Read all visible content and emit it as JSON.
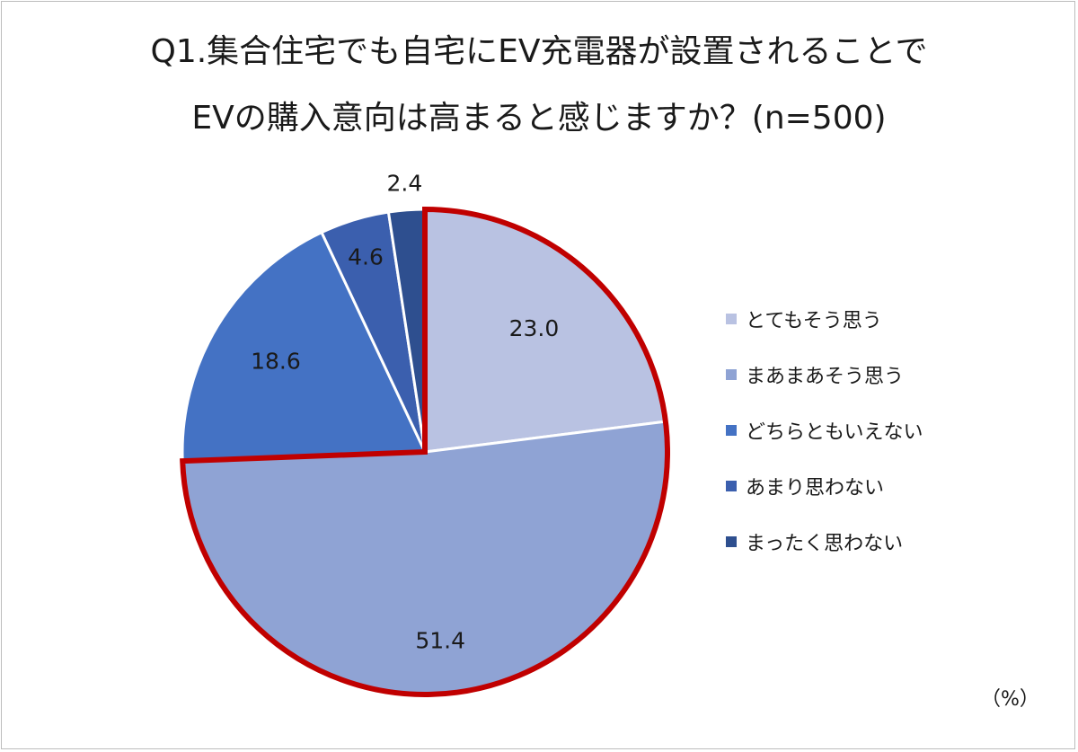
{
  "chart_data": {
    "type": "pie",
    "title_lines": [
      "Q1.集合住宅でも自宅にEV充電器が設置されることで",
      "EVの購入意向は高まると感じますか？(n=500)"
    ],
    "unit": "（%）",
    "categories": [
      "とてもそう思う",
      "まあまあそう思う",
      "どちらともいえない",
      "あまり思わない",
      "まったく思わない"
    ],
    "values": [
      23.0,
      51.4,
      18.6,
      4.6,
      2.4
    ],
    "value_labels": [
      "23.0",
      "51.4",
      "18.6",
      "4.6",
      "2.4"
    ],
    "colors": [
      "#b9c2e2",
      "#8fa3d4",
      "#4472c4",
      "#3b5fae",
      "#2e4f8f"
    ],
    "highlight": {
      "slices": [
        "とてもそう思う",
        "まあまあそう思う"
      ],
      "color": "#c00000"
    },
    "legend_position": "right"
  }
}
